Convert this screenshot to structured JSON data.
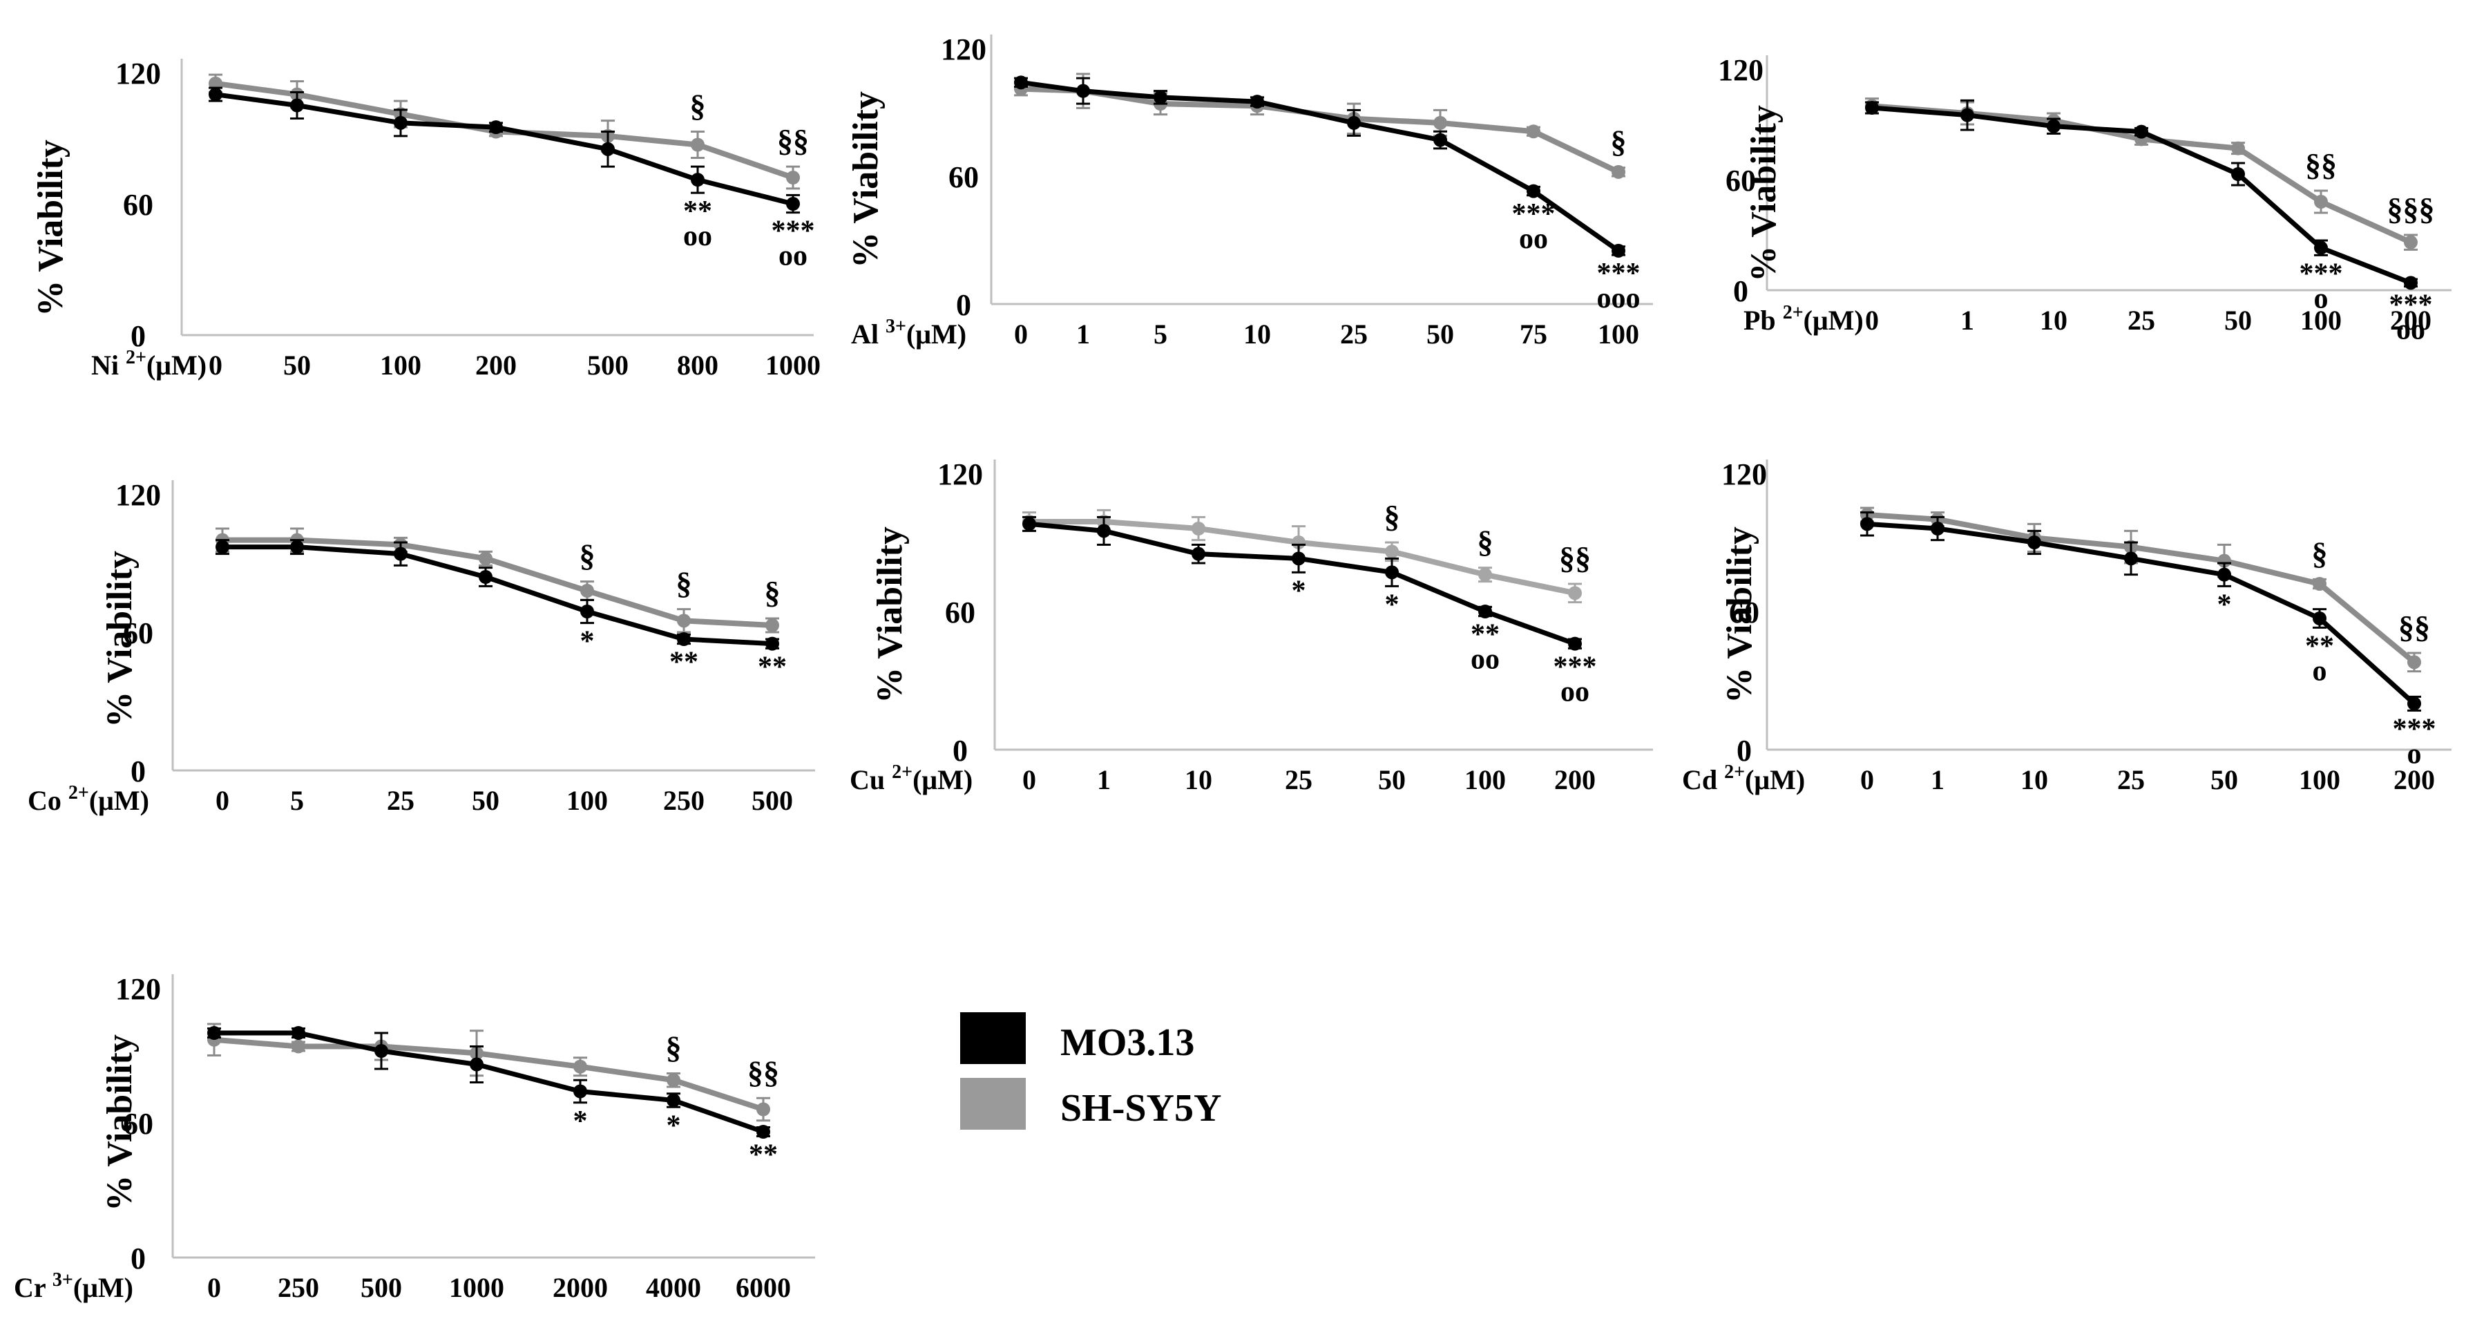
{
  "colors": {
    "mo": "#000000",
    "sh": "#8c8c8c",
    "sh_light": "#a6a6a6",
    "axis": "#bfbfbf"
  },
  "legend": [
    {
      "label": "MO3.13",
      "color": "#000000"
    },
    {
      "label": "SH-SY5Y",
      "color": "#9a9a9a"
    }
  ],
  "chart_data": [
    {
      "type": "line",
      "ylabel": "% Viability",
      "xlabel_ion": "Ni",
      "xlabel_charge": "2+",
      "xlabel_unit": "(μM)",
      "ylim": [
        0,
        120
      ],
      "ytick_labels": [
        "0",
        "60",
        "120"
      ],
      "categories": [
        "0",
        "50",
        "100",
        "200",
        "500",
        "800",
        "1000"
      ],
      "series": [
        {
          "name": "MO3.13",
          "values": [
            110,
            105,
            97,
            95,
            85,
            71,
            60
          ],
          "errors": [
            3,
            6,
            6,
            2,
            8,
            6,
            4
          ]
        },
        {
          "name": "SH-SY5Y",
          "values": [
            115,
            110,
            101,
            93,
            91,
            87,
            72
          ],
          "errors": [
            4,
            6,
            6,
            2,
            7,
            6,
            5
          ]
        }
      ],
      "annotations": [
        {
          "index": 5,
          "above": "§",
          "below": [
            "**",
            "οο"
          ]
        },
        {
          "index": 6,
          "above": "§§",
          "below": [
            "***",
            "οο"
          ]
        }
      ]
    },
    {
      "type": "line",
      "ylabel": "% Viability",
      "xlabel_ion": "Al",
      "xlabel_charge": "3+",
      "xlabel_unit": "(μM)",
      "ylim": [
        0,
        120
      ],
      "ytick_labels": [
        "0",
        "60",
        "120"
      ],
      "categories": [
        "0",
        "1",
        "5",
        "10",
        "25",
        "50",
        "75",
        "100"
      ],
      "series": [
        {
          "name": "MO3.13",
          "values": [
            104,
            100,
            97,
            95,
            85,
            77,
            53,
            25
          ],
          "errors": [
            2,
            6,
            3,
            2,
            6,
            4,
            2,
            2
          ]
        },
        {
          "name": "SH-SY5Y",
          "values": [
            101,
            100,
            94,
            93,
            87,
            85,
            81,
            62
          ],
          "errors": [
            3,
            8,
            5,
            4,
            7,
            6,
            2,
            2
          ]
        }
      ],
      "annotations": [
        {
          "index": 6,
          "above": "",
          "below": [
            "***",
            "οο"
          ]
        },
        {
          "index": 7,
          "above": "§",
          "below": [
            "***",
            "οοο"
          ]
        }
      ]
    },
    {
      "type": "line",
      "ylabel": "% Viability",
      "xlabel_ion": "Pb",
      "xlabel_charge": "2+",
      "xlabel_unit": "(μM)",
      "ylim": [
        0,
        120
      ],
      "ytick_labels": [
        "0",
        "60",
        "120"
      ],
      "categories": [
        "0",
        "1",
        "10",
        "25",
        "50",
        "100",
        "200"
      ],
      "series": [
        {
          "name": "MO3.13",
          "values": [
            99,
            95,
            89,
            86,
            63,
            23,
            4
          ],
          "errors": [
            3,
            8,
            4,
            2,
            6,
            4,
            2
          ]
        },
        {
          "name": "SH-SY5Y",
          "values": [
            100,
            96,
            92,
            82,
            77,
            48,
            26
          ],
          "errors": [
            4,
            6,
            4,
            3,
            3,
            6,
            4
          ]
        }
      ],
      "annotations": [
        {
          "index": 5,
          "above": "§§",
          "below": [
            "***",
            "ο"
          ]
        },
        {
          "index": 6,
          "above": "§§§",
          "below": [
            "***",
            "οο"
          ]
        }
      ]
    },
    {
      "type": "line",
      "ylabel": "% Viability",
      "xlabel_ion": "Co",
      "xlabel_charge": "2+",
      "xlabel_unit": "(μM)",
      "ylim": [
        0,
        120
      ],
      "ytick_labels": [
        "0",
        "60",
        "120"
      ],
      "categories": [
        "0",
        "5",
        "25",
        "50",
        "100",
        "250",
        "500"
      ],
      "series": [
        {
          "name": "MO3.13",
          "values": [
            97,
            97,
            94,
            84,
            69,
            57,
            55
          ],
          "errors": [
            3,
            3,
            5,
            4,
            5,
            2,
            2
          ]
        },
        {
          "name": "SH-SY5Y",
          "values": [
            100,
            100,
            98,
            92,
            78,
            65,
            63
          ],
          "errors": [
            5,
            5,
            3,
            3,
            4,
            5,
            3
          ]
        }
      ],
      "annotations": [
        {
          "index": 4,
          "above": "§",
          "below": [
            "*"
          ]
        },
        {
          "index": 5,
          "above": "§",
          "below": [
            "**"
          ]
        },
        {
          "index": 6,
          "above": "§",
          "below": [
            "**"
          ]
        }
      ]
    },
    {
      "type": "line",
      "ylabel": "% Viability",
      "xlabel_ion": "Cu",
      "xlabel_charge": "2+",
      "xlabel_unit": "(μM)",
      "ylim": [
        0,
        120
      ],
      "ytick_labels": [
        "0",
        "60",
        "120"
      ],
      "categories": [
        "0",
        "1",
        "10",
        "25",
        "50",
        "100",
        "200"
      ],
      "series": [
        {
          "name": "MO3.13",
          "values": [
            98,
            95,
            85,
            83,
            77,
            60,
            46
          ],
          "errors": [
            3,
            6,
            4,
            6,
            6,
            2,
            2
          ]
        },
        {
          "name": "SH-SY5Y",
          "values": [
            99,
            99,
            96,
            90,
            86,
            76,
            68
          ],
          "errors": [
            4,
            5,
            5,
            7,
            4,
            3,
            4
          ]
        }
      ],
      "annotations": [
        {
          "index": 3,
          "above": "",
          "below": [
            "*"
          ]
        },
        {
          "index": 4,
          "above": "§",
          "below": [
            "*"
          ]
        },
        {
          "index": 5,
          "above": "§",
          "below": [
            "**",
            "οο"
          ]
        },
        {
          "index": 6,
          "above": "§§",
          "below": [
            "***",
            "οο"
          ]
        }
      ]
    },
    {
      "type": "line",
      "ylabel": "% Viability",
      "xlabel_ion": "Cd",
      "xlabel_charge": "2+",
      "xlabel_unit": "(μM)",
      "ylim": [
        0,
        120
      ],
      "ytick_labels": [
        "0",
        "60",
        "120"
      ],
      "categories": [
        "0",
        "1",
        "10",
        "25",
        "50",
        "100",
        "200"
      ],
      "series": [
        {
          "name": "MO3.13",
          "values": [
            98,
            96,
            90,
            83,
            76,
            57,
            20
          ],
          "errors": [
            5,
            5,
            5,
            7,
            5,
            4,
            3
          ]
        },
        {
          "name": "SH-SY5Y",
          "values": [
            102,
            100,
            92,
            88,
            82,
            72,
            38
          ],
          "errors": [
            3,
            3,
            6,
            7,
            7,
            2,
            4
          ]
        }
      ],
      "annotations": [
        {
          "index": 4,
          "above": "",
          "below": [
            "*"
          ]
        },
        {
          "index": 5,
          "above": "§",
          "below": [
            "**",
            "ο"
          ]
        },
        {
          "index": 6,
          "above": "§§",
          "below": [
            "***",
            "ο"
          ]
        }
      ]
    },
    {
      "type": "line",
      "ylabel": "% Viability",
      "xlabel_ion": "Cr",
      "xlabel_charge": "3+",
      "xlabel_unit": "(μM)",
      "ylim": [
        0,
        120
      ],
      "ytick_labels": [
        "0",
        "60",
        "120"
      ],
      "categories": [
        "0",
        "250",
        "500",
        "1000",
        "2000",
        "4000",
        "6000"
      ],
      "series": [
        {
          "name": "MO3.13",
          "values": [
            100,
            100,
            92,
            86,
            74,
            70,
            56
          ],
          "errors": [
            2,
            2,
            8,
            8,
            5,
            3,
            2
          ]
        },
        {
          "name": "SH-SY5Y",
          "values": [
            97,
            94,
            94,
            91,
            85,
            79,
            66
          ],
          "errors": [
            7,
            2,
            6,
            10,
            4,
            3,
            5
          ]
        }
      ],
      "annotations": [
        {
          "index": 4,
          "above": "",
          "below": [
            "*"
          ]
        },
        {
          "index": 5,
          "above": "§",
          "below": [
            "*"
          ]
        },
        {
          "index": 6,
          "above": "§§",
          "below": [
            "**"
          ]
        }
      ]
    }
  ]
}
